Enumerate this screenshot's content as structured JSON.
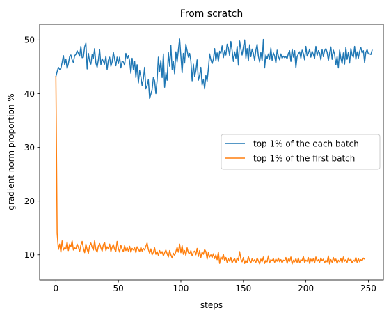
{
  "chart_data": {
    "type": "line",
    "title": "From scratch",
    "xlabel": "steps",
    "ylabel": "gradient norm proportion %",
    "xlim": [
      -13,
      262
    ],
    "ylim": [
      5.3,
      52.9
    ],
    "xticks": [
      0,
      50,
      100,
      150,
      200,
      250
    ],
    "yticks": [
      10,
      20,
      30,
      40,
      50
    ],
    "grid": false,
    "legend_position": "center-right",
    "x": {
      "start": 0,
      "end": 249,
      "step": 1
    },
    "series": [
      {
        "name": "top 1% of the each batch",
        "color": "#1f77b4",
        "values": [
          43.2,
          44.1,
          44.9,
          44.5,
          44.7,
          45.8,
          47.1,
          45.4,
          46.4,
          44.7,
          45.6,
          46.9,
          47.2,
          46.3,
          45.8,
          47.1,
          47.3,
          48.0,
          47.5,
          47.0,
          48.8,
          46.7,
          46.8,
          48.7,
          49.4,
          44.6,
          47.5,
          46.0,
          45.5,
          47.3,
          46.6,
          48.4,
          45.7,
          44.9,
          46.3,
          48.2,
          45.4,
          46.5,
          46.0,
          45.5,
          47.0,
          44.5,
          46.2,
          46.8,
          45.1,
          45.9,
          47.7,
          46.4,
          45.2,
          46.8,
          45.6,
          46.8,
          44.8,
          46.0,
          45.9,
          45.3,
          47.5,
          46.5,
          47.1,
          46.1,
          43.8,
          46.6,
          44.5,
          46.0,
          43.0,
          45.4,
          42.0,
          44.3,
          43.2,
          41.5,
          42.7,
          44.9,
          40.9,
          41.5,
          42.6,
          39.1,
          39.9,
          40.8,
          43.0,
          42.4,
          40.0,
          42.5,
          46.8,
          44.1,
          46.2,
          43.0,
          47.4,
          41.2,
          43.9,
          42.5,
          47.7,
          45.1,
          49.0,
          44.5,
          46.0,
          43.7,
          47.8,
          45.9,
          48.1,
          50.2,
          47.0,
          43.9,
          47.5,
          45.7,
          49.2,
          48.0,
          46.8,
          47.5,
          46.1,
          42.4,
          45.5,
          43.2,
          44.3,
          46.3,
          42.5,
          43.4,
          44.9,
          41.6,
          42.7,
          40.9,
          43.4,
          42.3,
          44.6,
          47.4,
          46.3,
          45.6,
          46.4,
          48.4,
          46.1,
          47.6,
          46.0,
          47.9,
          47.5,
          48.9,
          46.7,
          48.0,
          47.2,
          49.2,
          48.5,
          47.1,
          49.7,
          48.0,
          46.0,
          47.8,
          46.6,
          48.8,
          45.3,
          49.8,
          48.3,
          47.2,
          48.7,
          50.0,
          46.6,
          48.4,
          46.1,
          49.1,
          46.9,
          48.3,
          47.5,
          46.2,
          48.1,
          49.2,
          47.0,
          45.9,
          47.7,
          46.1,
          50.1,
          44.8,
          47.2,
          46.5,
          47.4,
          46.4,
          48.5,
          46.2,
          47.6,
          47.0,
          45.7,
          48.1,
          47.0,
          46.3,
          47.4,
          46.6,
          47.0,
          46.7,
          46.9,
          46.5,
          47.5,
          48.0,
          46.0,
          48.3,
          46.8,
          48.0,
          44.8,
          46.9,
          47.4,
          47.8,
          46.6,
          48.1,
          47.5,
          46.3,
          48.8,
          47.0,
          47.5,
          48.3,
          46.8,
          47.9,
          47.3,
          46.6,
          48.8,
          47.1,
          48.0,
          47.6,
          46.3,
          48.2,
          46.9,
          48.0,
          48.4,
          47.7,
          46.2,
          47.6,
          48.7,
          46.4,
          48.1,
          47.3,
          45.4,
          46.9,
          44.8,
          48.1,
          46.6,
          45.6,
          47.6,
          45.5,
          48.6,
          46.4,
          47.7,
          45.7,
          48.4,
          47.2,
          46.8,
          48.8,
          46.4,
          47.8,
          46.6,
          47.9,
          48.6,
          47.6,
          48.0,
          45.8,
          47.7,
          48.2,
          47.4,
          47.4,
          47.3,
          48.1
        ]
      },
      {
        "name": "top 1% of the first batch",
        "color": "#ff7f0e",
        "values": [
          43.2,
          14.0,
          11.0,
          12.0,
          10.5,
          12.6,
          10.9,
          11.3,
          11.1,
          12.4,
          10.8,
          12.0,
          11.5,
          12.6,
          10.9,
          11.3,
          11.1,
          12.0,
          11.4,
          10.6,
          11.8,
          12.5,
          11.2,
          10.4,
          12.0,
          11.0,
          10.3,
          11.7,
          12.2,
          11.4,
          10.9,
          12.6,
          11.0,
          10.5,
          11.6,
          12.1,
          11.3,
          10.7,
          11.9,
          12.3,
          10.8,
          11.5,
          11.1,
          12.0,
          10.6,
          11.4,
          11.9,
          11.0,
          10.7,
          12.5,
          11.2,
          10.5,
          11.8,
          11.0,
          10.6,
          11.7,
          10.8,
          11.4,
          10.7,
          11.6,
          10.5,
          11.2,
          10.9,
          11.3,
          10.4,
          11.5,
          11.1,
          10.6,
          11.4,
          10.7,
          11.2,
          10.9,
          11.6,
          12.2,
          11.0,
          10.3,
          11.1,
          10.0,
          10.5,
          11.3,
          10.1,
          10.6,
          9.9,
          10.8,
          10.2,
          10.6,
          9.8,
          10.4,
          10.9,
          10.2,
          9.6,
          10.8,
          10.0,
          9.4,
          10.3,
          9.9,
          10.6,
          11.4,
          10.5,
          12.0,
          10.4,
          11.7,
          10.1,
          10.8,
          9.9,
          11.3,
          10.4,
          10.2,
          10.8,
          9.8,
          10.5,
          10.7,
          10.0,
          11.2,
          9.7,
          10.8,
          9.5,
          10.5,
          10.1,
          11.0,
          10.6,
          9.2,
          10.4,
          9.6,
          10.0,
          9.5,
          10.2,
          9.3,
          10.0,
          9.1,
          10.5,
          8.4,
          9.6,
          9.2,
          10.1,
          8.9,
          9.5,
          8.6,
          9.3,
          8.8,
          9.5,
          8.5,
          9.0,
          9.3,
          8.6,
          9.4,
          9.0,
          10.6,
          9.2,
          8.7,
          9.5,
          8.4,
          9.0,
          8.6,
          9.7,
          8.9,
          8.5,
          9.3,
          8.8,
          9.1,
          8.6,
          9.4,
          8.9,
          8.3,
          9.2,
          8.7,
          9.6,
          8.4,
          9.0,
          8.7,
          9.8,
          8.5,
          9.1,
          8.9,
          9.3,
          8.6,
          9.2,
          8.8,
          9.4,
          8.7,
          9.1,
          8.5,
          9.0,
          8.9,
          9.5,
          8.4,
          9.2,
          8.8,
          9.6,
          8.3,
          9.0,
          8.7,
          9.3,
          8.6,
          9.4,
          8.5,
          9.1,
          8.9,
          9.7,
          8.6,
          9.0,
          8.8,
          9.5,
          8.4,
          9.2,
          8.7,
          9.3,
          8.5,
          9.6,
          8.8,
          9.1,
          8.6,
          9.4,
          8.9,
          9.2,
          8.5,
          9.0,
          8.7,
          9.8,
          8.3,
          9.1,
          8.6,
          9.5,
          8.8,
          9.2,
          8.4,
          9.0,
          8.7,
          9.3,
          8.5,
          9.6,
          8.8,
          9.1,
          8.6,
          9.4,
          8.9,
          9.2,
          8.5,
          9.0,
          8.8,
          9.5,
          8.6,
          9.3,
          8.7,
          9.1,
          8.9,
          9.4,
          9.2
        ]
      }
    ]
  }
}
